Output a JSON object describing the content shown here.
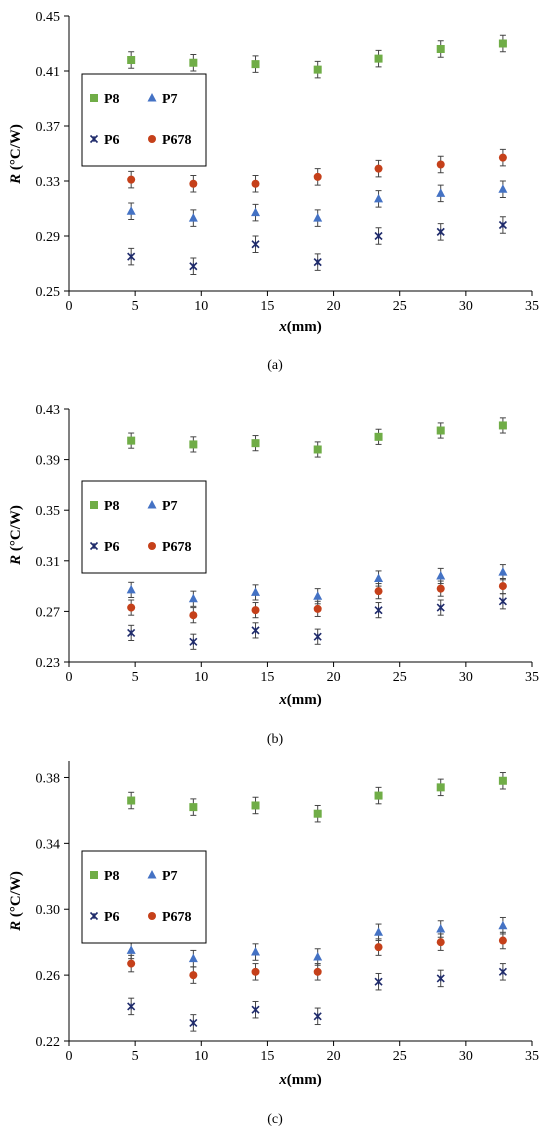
{
  "colors": {
    "P8": "#70ad47",
    "P7": "#4472c4",
    "P6": "#1f2b6b",
    "P678": "#c5401a"
  },
  "chart_data": [
    {
      "type": "scatter",
      "caption": "(a)",
      "xlabel_italic": "x",
      "xlabel_unit": "(mm)",
      "ylabel_italic": "R",
      "ylabel_unit": " (°C/W)",
      "xlim": [
        0,
        35
      ],
      "ylim": [
        0.25,
        0.45
      ],
      "xticks": [
        0,
        5,
        10,
        15,
        20,
        25,
        30,
        35
      ],
      "yticks": [
        0.25,
        0.29,
        0.33,
        0.37,
        0.41,
        0.45
      ],
      "ytick_labels": [
        "0.25",
        "0.29",
        "0.33",
        "0.37",
        "0.41",
        "0.45"
      ],
      "error": 0.006,
      "x": [
        4.7,
        9.4,
        14.1,
        18.8,
        23.4,
        28.1,
        32.8
      ],
      "series": [
        {
          "name": "P8",
          "marker": "square",
          "values": [
            0.418,
            0.416,
            0.415,
            0.411,
            0.419,
            0.426,
            0.43
          ]
        },
        {
          "name": "P7",
          "marker": "triangle",
          "values": [
            0.308,
            0.303,
            0.307,
            0.303,
            0.317,
            0.321,
            0.324
          ]
        },
        {
          "name": "P6",
          "marker": "star",
          "values": [
            0.275,
            0.268,
            0.284,
            0.271,
            0.29,
            0.293,
            0.298
          ]
        },
        {
          "name": "P678",
          "marker": "circle",
          "values": [
            0.331,
            0.328,
            0.328,
            0.333,
            0.339,
            0.342,
            0.347
          ]
        }
      ]
    },
    {
      "type": "scatter",
      "caption": "(b)",
      "xlabel_italic": "x",
      "xlabel_unit": "(mm)",
      "ylabel_italic": "R",
      "ylabel_unit": " (°C/W)",
      "xlim": [
        0,
        35
      ],
      "ylim": [
        0.23,
        0.43
      ],
      "xticks": [
        0,
        5,
        10,
        15,
        20,
        25,
        30,
        35
      ],
      "yticks": [
        0.23,
        0.27,
        0.31,
        0.35,
        0.39,
        0.43
      ],
      "ytick_labels": [
        "0.23",
        "0.27",
        "0.31",
        "0.35",
        "0.39",
        "0.43"
      ],
      "error": 0.006,
      "x": [
        4.7,
        9.4,
        14.1,
        18.8,
        23.4,
        28.1,
        32.8
      ],
      "series": [
        {
          "name": "P8",
          "marker": "square",
          "values": [
            0.405,
            0.402,
            0.403,
            0.398,
            0.408,
            0.413,
            0.417
          ]
        },
        {
          "name": "P7",
          "marker": "triangle",
          "values": [
            0.287,
            0.28,
            0.285,
            0.282,
            0.296,
            0.298,
            0.301
          ]
        },
        {
          "name": "P6",
          "marker": "star",
          "values": [
            0.253,
            0.246,
            0.255,
            0.25,
            0.271,
            0.273,
            0.278
          ]
        },
        {
          "name": "P678",
          "marker": "circle",
          "values": [
            0.273,
            0.267,
            0.271,
            0.272,
            0.286,
            0.288,
            0.29
          ]
        }
      ]
    },
    {
      "type": "scatter",
      "caption": "(c)",
      "xlabel_italic": "x",
      "xlabel_unit": "(mm)",
      "ylabel_italic": "R",
      "ylabel_unit": " (°C/W)",
      "xlim": [
        0,
        35
      ],
      "ylim": [
        0.22,
        0.39
      ],
      "xticks": [
        0,
        5,
        10,
        15,
        20,
        25,
        30,
        35
      ],
      "yticks": [
        0.22,
        0.26,
        0.3,
        0.34,
        0.38
      ],
      "ytick_labels": [
        "0.22",
        "0.26",
        "0.30",
        "0.34",
        "0.38"
      ],
      "error": 0.005,
      "x": [
        4.7,
        9.4,
        14.1,
        18.8,
        23.4,
        28.1,
        32.8
      ],
      "series": [
        {
          "name": "P8",
          "marker": "square",
          "values": [
            0.366,
            0.362,
            0.363,
            0.358,
            0.369,
            0.374,
            0.378
          ]
        },
        {
          "name": "P7",
          "marker": "triangle",
          "values": [
            0.275,
            0.27,
            0.274,
            0.271,
            0.286,
            0.288,
            0.29
          ]
        },
        {
          "name": "P6",
          "marker": "star",
          "values": [
            0.241,
            0.231,
            0.239,
            0.235,
            0.256,
            0.258,
            0.262
          ]
        },
        {
          "name": "P678",
          "marker": "circle",
          "values": [
            0.267,
            0.26,
            0.262,
            0.262,
            0.277,
            0.28,
            0.281
          ]
        }
      ]
    }
  ]
}
